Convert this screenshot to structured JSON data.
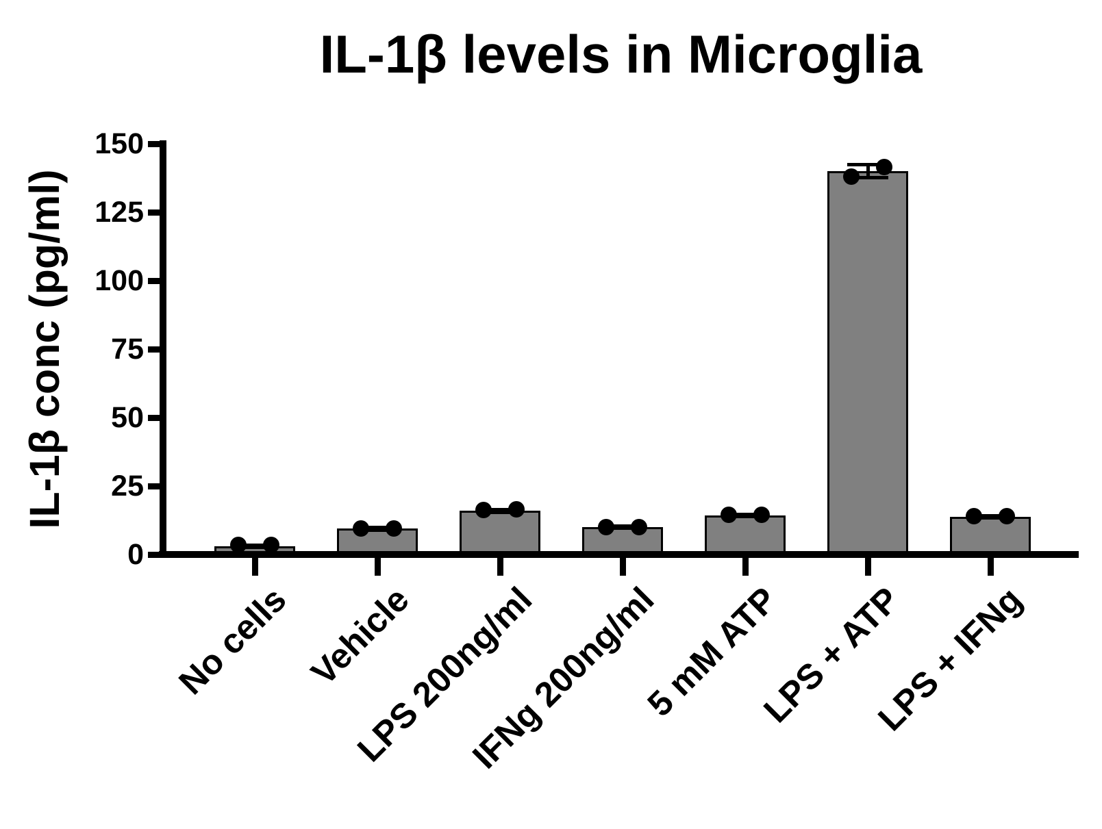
{
  "chart_data": {
    "type": "bar",
    "title": "IL-1β levels in Microglia",
    "ylabel": "IL-1β conc (pg/ml)",
    "xlabel": "",
    "ylim": [
      0,
      150
    ],
    "yticks": [
      0,
      25,
      50,
      75,
      100,
      125,
      150
    ],
    "grid": false,
    "legend": null,
    "categories": [
      "No cells",
      "Vehicle",
      "LPS 200ng/ml",
      "IFNg 200ng/ml",
      "5 mM ATP",
      "LPS + ATP",
      "LPS + IFNg"
    ],
    "values": [
      3,
      9.5,
      16,
      10,
      14.3,
      140,
      13.8
    ],
    "sd": [
      0.4,
      0.5,
      0.5,
      0.4,
      0.4,
      2.3,
      0.4
    ],
    "points": [
      [
        3.5,
        3.5
      ],
      [
        9.6,
        9.6
      ],
      [
        16.3,
        16.4
      ],
      [
        10,
        10
      ],
      [
        14.4,
        14.5
      ],
      [
        138,
        141.5
      ],
      [
        14,
        14.1
      ]
    ],
    "bar_color": "#808080",
    "bar_edge_color": "#000000",
    "point_color": "#000000",
    "axis_color": "#000000",
    "text_color": "#000000"
  }
}
